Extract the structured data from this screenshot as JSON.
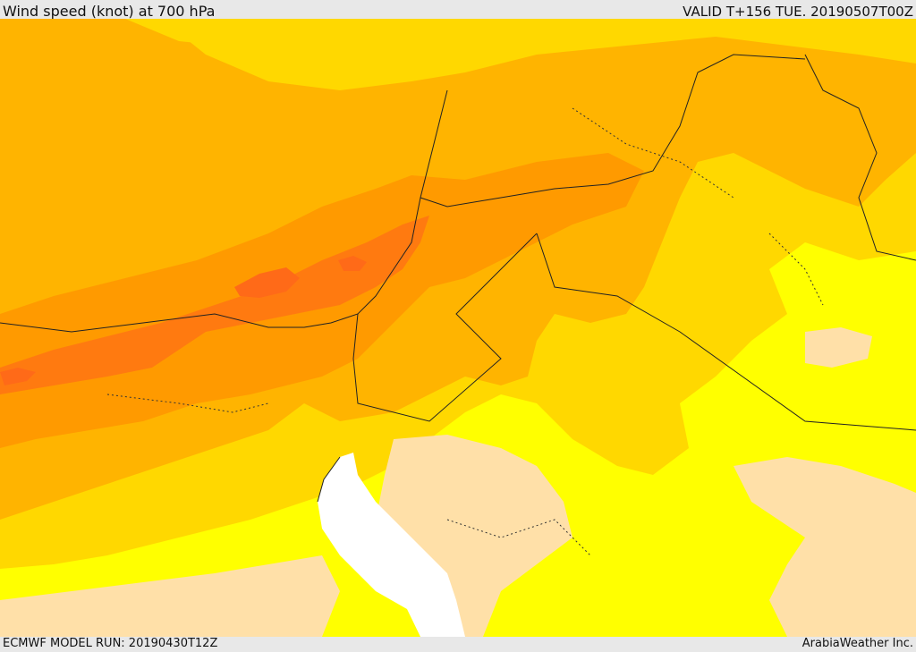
{
  "header": {
    "title": "Wind speed (knot) at 700 hPa",
    "valid_time": "VALID T+156 TUE. 20190507T00Z"
  },
  "footer": {
    "model_run": "ECMWF MODEL RUN: 20190430T12Z",
    "credit": "ArabiaWeather Inc."
  },
  "map": {
    "colors": {
      "band_light_land": "#ffe0a8",
      "band_yellow": "#ffff00",
      "band_gold": "#ffd800",
      "band_orange_light": "#ffb400",
      "band_orange": "#ff9a00",
      "band_orange_dark": "#ff7a10",
      "band_red_orange": "#ff6a18",
      "sea_white": "#ffffff",
      "border_line": "#222222"
    }
  }
}
